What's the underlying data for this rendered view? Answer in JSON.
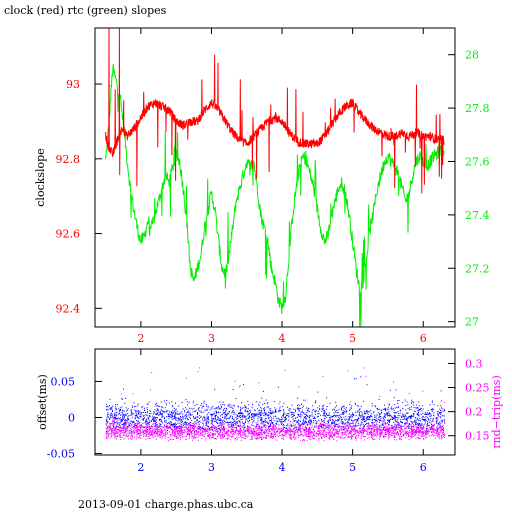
{
  "title": "clock (red) rtc (green) slopes",
  "footer": "2013-09-01 charge.phas.ubc.ca",
  "colors": {
    "clock": "#ff0000",
    "rtc": "#00ee00",
    "offset": "#0000ff",
    "rndtrip": "#ff00ff",
    "axis": "#000000"
  },
  "chart_data": [
    {
      "type": "line",
      "title": "clock (red) rtc (green) slopes",
      "ylabel": "clockslope",
      "y2label": "",
      "xlim": [
        1.35,
        6.45
      ],
      "ylim": [
        92.35,
        93.15
      ],
      "y2lim": [
        26.98,
        28.1
      ],
      "xticks": [
        2,
        3,
        4,
        5,
        6
      ],
      "yticks": [
        92.4,
        92.6,
        92.8,
        93
      ],
      "y2ticks": [
        27,
        27.2,
        27.4,
        27.6,
        27.8,
        28
      ],
      "series": [
        {
          "axis": "left",
          "x": [
            1.5,
            1.55,
            1.6,
            1.65,
            1.7,
            1.75,
            1.8,
            1.9,
            2.0,
            2.1,
            2.2,
            2.3,
            2.4,
            2.5,
            2.6,
            2.7,
            2.8,
            2.9,
            3.0,
            3.1,
            3.2,
            3.3,
            3.4,
            3.5,
            3.6,
            3.7,
            3.8,
            3.9,
            4.0,
            4.1,
            4.2,
            4.3,
            4.4,
            4.5,
            4.6,
            4.7,
            4.8,
            4.9,
            5.0,
            5.1,
            5.2,
            5.3,
            5.4,
            5.5,
            5.6,
            5.7,
            5.8,
            5.9,
            6.0,
            6.1,
            6.2,
            6.3
          ],
          "values": [
            92.86,
            92.83,
            92.81,
            92.84,
            92.87,
            92.88,
            92.86,
            92.88,
            92.91,
            92.94,
            92.95,
            92.94,
            92.93,
            92.9,
            92.89,
            92.9,
            92.9,
            92.93,
            92.95,
            92.93,
            92.9,
            92.87,
            92.85,
            92.84,
            92.86,
            92.88,
            92.9,
            92.91,
            92.9,
            92.87,
            92.85,
            92.84,
            92.84,
            92.84,
            92.86,
            92.89,
            92.92,
            92.94,
            92.95,
            92.92,
            92.9,
            92.88,
            92.87,
            92.86,
            92.86,
            92.87,
            92.86,
            92.87,
            92.86,
            92.86,
            92.85,
            92.85
          ]
        },
        {
          "axis": "right",
          "x": [
            1.5,
            1.55,
            1.6,
            1.65,
            1.7,
            1.75,
            1.8,
            1.85,
            1.9,
            1.95,
            2.0,
            2.05,
            2.1,
            2.15,
            2.2,
            2.25,
            2.3,
            2.35,
            2.4,
            2.45,
            2.5,
            2.55,
            2.6,
            2.65,
            2.7,
            2.75,
            2.8,
            2.85,
            2.9,
            2.95,
            3.0,
            3.05,
            3.1,
            3.15,
            3.2,
            3.25,
            3.3,
            3.35,
            3.4,
            3.45,
            3.5,
            3.55,
            3.6,
            3.65,
            3.7,
            3.75,
            3.8,
            3.85,
            3.9,
            3.95,
            4.0,
            4.05,
            4.1,
            4.15,
            4.2,
            4.25,
            4.3,
            4.35,
            4.4,
            4.45,
            4.5,
            4.55,
            4.6,
            4.65,
            4.7,
            4.75,
            4.8,
            4.85,
            4.9,
            4.95,
            5.0,
            5.05,
            5.1,
            5.15,
            5.2,
            5.25,
            5.3,
            5.35,
            5.4,
            5.45,
            5.5,
            5.55,
            5.6,
            5.65,
            5.7,
            5.75,
            5.8,
            5.85,
            5.9,
            5.95,
            6.0,
            6.05,
            6.1,
            6.15,
            6.2,
            6.25,
            6.3
          ],
          "values": [
            27.6,
            27.75,
            27.95,
            27.9,
            27.85,
            27.75,
            27.62,
            27.5,
            27.42,
            27.35,
            27.3,
            27.32,
            27.38,
            27.35,
            27.4,
            27.45,
            27.5,
            27.55,
            27.52,
            27.58,
            27.62,
            27.6,
            27.5,
            27.38,
            27.2,
            27.15,
            27.2,
            27.25,
            27.35,
            27.42,
            27.48,
            27.42,
            27.3,
            27.2,
            27.18,
            27.25,
            27.35,
            27.45,
            27.5,
            27.55,
            27.6,
            27.58,
            27.6,
            27.5,
            27.4,
            27.35,
            27.3,
            27.2,
            27.15,
            27.08,
            27.05,
            27.1,
            27.25,
            27.4,
            27.5,
            27.58,
            27.62,
            27.6,
            27.55,
            27.5,
            27.42,
            27.35,
            27.3,
            27.32,
            27.4,
            27.45,
            27.5,
            27.52,
            27.48,
            27.4,
            27.3,
            27.2,
            27.12,
            27.15,
            27.25,
            27.35,
            27.42,
            27.5,
            27.55,
            27.6,
            27.62,
            27.6,
            27.58,
            27.55,
            27.5,
            27.45,
            27.48,
            27.55,
            27.6,
            27.62,
            27.6,
            27.58,
            27.6,
            27.62,
            27.63,
            27.64,
            27.65
          ]
        }
      ]
    },
    {
      "type": "scatter",
      "ylabel": "offset(ms)",
      "y2label": "rnd−trip(ms)",
      "xlim": [
        1.35,
        6.45
      ],
      "ylim": [
        -0.052,
        0.095
      ],
      "y2lim": [
        0.11,
        0.33
      ],
      "xticks": [
        2,
        3,
        4,
        5,
        6
      ],
      "yticks": [
        -0.05,
        0,
        0.05
      ],
      "y2ticks": [
        0.15,
        0.2,
        0.25,
        0.3
      ],
      "series": [
        {
          "axis": "left",
          "x_range": [
            1.5,
            6.3
          ],
          "center": 0.0,
          "spread": 0.02
        },
        {
          "axis": "right",
          "x_range": [
            1.5,
            6.3
          ],
          "center": 0.16,
          "spread": 0.02
        }
      ]
    }
  ]
}
